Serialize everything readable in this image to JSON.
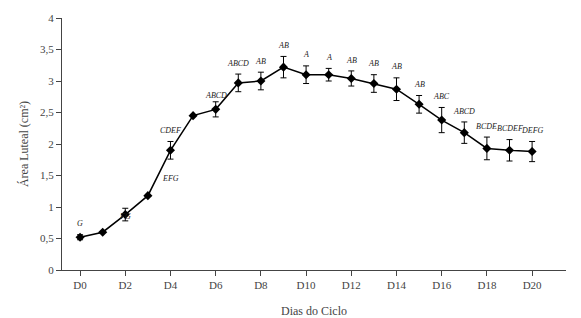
{
  "chart_data": {
    "type": "line",
    "x": [
      0,
      1,
      2,
      3,
      4,
      5,
      6,
      7,
      8,
      9,
      10,
      11,
      12,
      13,
      14,
      15,
      16,
      17,
      18,
      19,
      20
    ],
    "values": [
      0.52,
      0.6,
      0.88,
      1.18,
      1.9,
      2.45,
      2.55,
      2.97,
      3.0,
      3.22,
      3.1,
      3.1,
      3.04,
      2.96,
      2.87,
      2.63,
      2.38,
      2.18,
      1.93,
      1.9,
      1.88
    ],
    "errors": [
      0.04,
      null,
      0.1,
      null,
      0.14,
      null,
      0.12,
      0.14,
      0.14,
      0.17,
      0.14,
      0.1,
      0.12,
      0.14,
      0.18,
      0.14,
      0.2,
      0.17,
      0.18,
      0.17,
      0.16
    ],
    "color": "#000000",
    "marker": "diamond",
    "line_style": "solid",
    "xlabel": "Dias do Ciclo",
    "ylabel": "Área Luteal (cm²)",
    "xlim": [
      -0.8,
      21.5
    ],
    "ylim": [
      0,
      4.0
    ],
    "xticks": [
      {
        "value": 0,
        "label": "D0"
      },
      {
        "value": 2,
        "label": "D2"
      },
      {
        "value": 4,
        "label": "D4"
      },
      {
        "value": 6,
        "label": "D6"
      },
      {
        "value": 8,
        "label": "D8"
      },
      {
        "value": 10,
        "label": "D10"
      },
      {
        "value": 12,
        "label": "D12"
      },
      {
        "value": 14,
        "label": "D14"
      },
      {
        "value": 16,
        "label": "D16"
      },
      {
        "value": 18,
        "label": "D18"
      },
      {
        "value": 20,
        "label": "D20"
      }
    ],
    "yticks": [
      0,
      {
        "value": 0.5,
        "label": "0,5"
      },
      1,
      {
        "value": 1.5,
        "label": "1,5"
      },
      2,
      {
        "value": 2.5,
        "label": "2,5"
      },
      3,
      {
        "value": 3.5,
        "label": "3,5"
      },
      4
    ],
    "grid": false,
    "annotations": [
      {
        "x": 0,
        "y": 0.63,
        "text": "G"
      },
      {
        "x": 2,
        "y": 0.74,
        "text": "FG"
      },
      {
        "x": 4,
        "y": 1.35,
        "text": "EFG"
      },
      {
        "x": 4,
        "y": 2.11,
        "text": "CDEF"
      },
      {
        "x": 6,
        "y": 2.66,
        "text": "ABCD"
      },
      {
        "x": 7,
        "y": 3.18,
        "text": "ABCD"
      },
      {
        "x": 8,
        "y": 3.21,
        "text": "AB"
      },
      {
        "x": 9,
        "y": 3.46,
        "text": "AB"
      },
      {
        "x": 10,
        "y": 3.31,
        "text": "A"
      },
      {
        "x": 11,
        "y": 3.27,
        "text": "A"
      },
      {
        "x": 12,
        "y": 3.23,
        "text": "AB"
      },
      {
        "x": 13,
        "y": 3.17,
        "text": "AB"
      },
      {
        "x": 14,
        "y": 3.12,
        "text": "AB"
      },
      {
        "x": 15,
        "y": 2.84,
        "text": "AB"
      },
      {
        "x": 16,
        "y": 2.65,
        "text": "ABC"
      },
      {
        "x": 17,
        "y": 2.42,
        "text": "ABCD"
      },
      {
        "x": 18,
        "y": 2.18,
        "text": "BCDE"
      },
      {
        "x": 19,
        "y": 2.14,
        "text": "BCDEF"
      },
      {
        "x": 20,
        "y": 2.11,
        "text": "DEFG"
      }
    ]
  }
}
